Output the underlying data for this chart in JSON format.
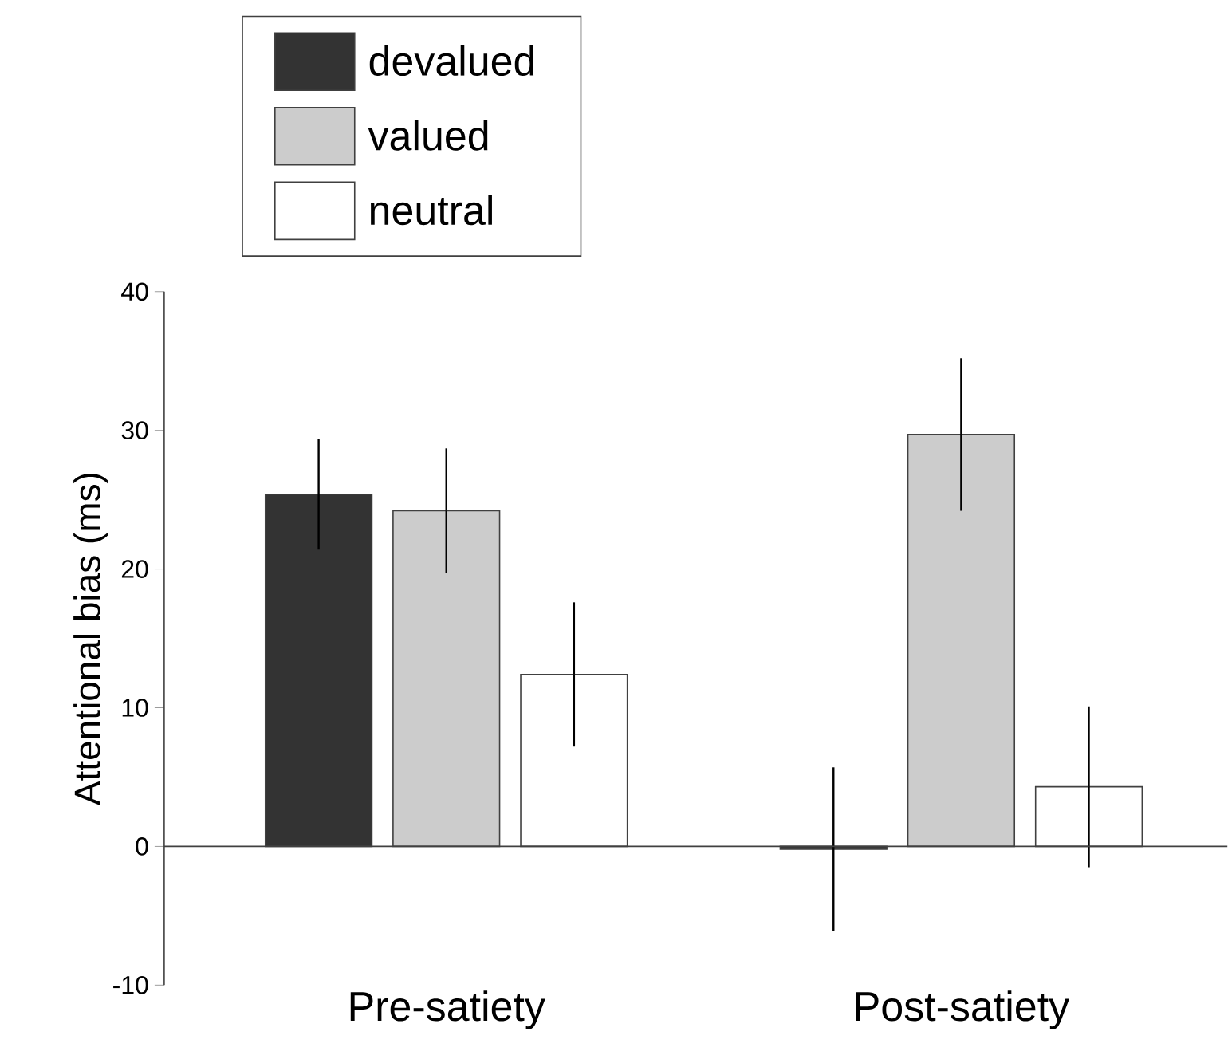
{
  "chart_data": {
    "type": "bar",
    "ylabel": "Attentional bias (ms)",
    "categories": [
      "Pre-satiety",
      "Post-satiety"
    ],
    "series": [
      {
        "name": "devalued",
        "color": "#333333",
        "values": [
          25.4,
          -0.2
        ],
        "errors": [
          4,
          5.9
        ]
      },
      {
        "name": "valued",
        "color": "#cccccc",
        "values": [
          24.2,
          29.7
        ],
        "errors": [
          4.5,
          5.5
        ]
      },
      {
        "name": "neutral",
        "color": "#ffffff",
        "values": [
          12.4,
          4.3
        ],
        "errors": [
          5.2,
          5.8
        ]
      }
    ],
    "ylim": [
      -10,
      40
    ],
    "yticks": [
      -10,
      0,
      10,
      20,
      30,
      40
    ],
    "legend": "top"
  }
}
